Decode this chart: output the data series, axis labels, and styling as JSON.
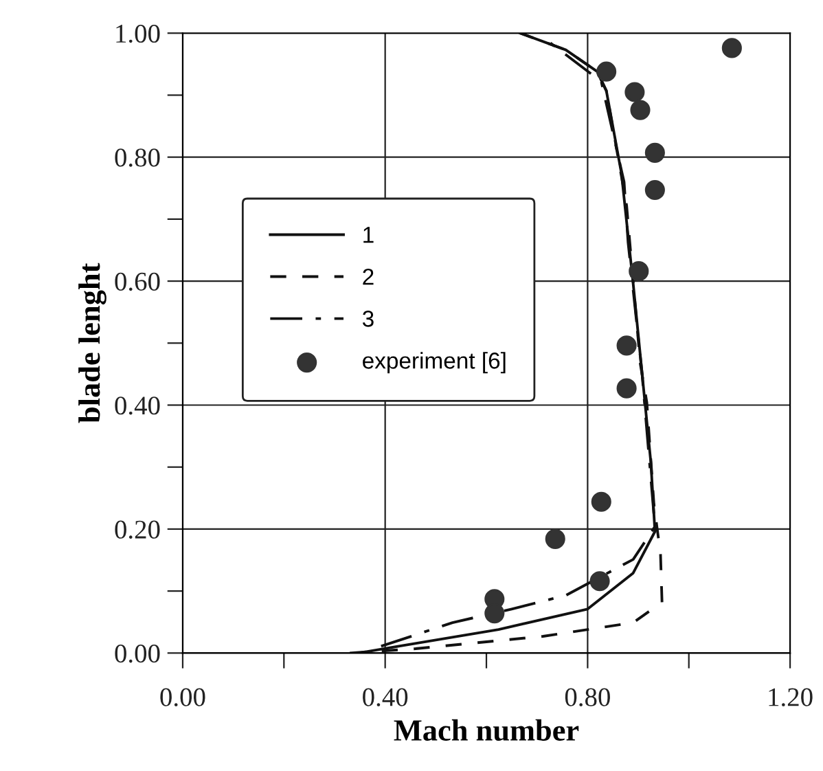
{
  "chart_data": {
    "type": "line",
    "xlabel": "Mach number",
    "ylabel": "blade lenght",
    "xlim": [
      0,
      1.2
    ],
    "ylim": [
      0,
      1.0
    ],
    "xticks": [
      {
        "value": 0,
        "label": "0.00"
      },
      {
        "value": 0.2,
        "label": null
      },
      {
        "value": 0.4,
        "label": "0.40"
      },
      {
        "value": 0.6,
        "label": null
      },
      {
        "value": 0.8,
        "label": "0.80"
      },
      {
        "value": 1.0,
        "label": null
      },
      {
        "value": 1.2,
        "label": "1.20"
      }
    ],
    "yticks": [
      {
        "value": 0,
        "label": "0.00"
      },
      {
        "value": 0.1,
        "label": null
      },
      {
        "value": 0.2,
        "label": "0.20"
      },
      {
        "value": 0.3,
        "label": null
      },
      {
        "value": 0.4,
        "label": "0.40"
      },
      {
        "value": 0.5,
        "label": null
      },
      {
        "value": 0.6,
        "label": "0.60"
      },
      {
        "value": 0.7,
        "label": null
      },
      {
        "value": 0.8,
        "label": "0.80"
      },
      {
        "value": 0.9,
        "label": null
      },
      {
        "value": 1.0,
        "label": "1.00"
      }
    ],
    "grid": true,
    "legend": "center left",
    "series": [
      {
        "name": "1",
        "color": "#111111",
        "line_style": "solid",
        "x": [
          0.347,
          0.427,
          0.624,
          0.8,
          0.89,
          0.933,
          0.925,
          0.907,
          0.89,
          0.867,
          0.837,
          0.819,
          0.757,
          0.667
        ],
        "values": [
          0,
          0.011,
          0.038,
          0.071,
          0.129,
          0.196,
          0.307,
          0.456,
          0.596,
          0.773,
          0.907,
          0.938,
          0.973,
          1.0
        ]
      },
      {
        "name": "2",
        "color": "#111111",
        "line_style": "dashed",
        "x": [
          0.33,
          0.46,
          0.712,
          0.89,
          0.947,
          0.944,
          0.931,
          0.917,
          0.904,
          0.877,
          0.837,
          0.819,
          0.757,
          0.667
        ],
        "values": [
          0,
          0.007,
          0.027,
          0.049,
          0.082,
          0.16,
          0.24,
          0.404,
          0.467,
          0.722,
          0.907,
          0.938,
          0.973,
          1.0
        ]
      },
      {
        "name": "3",
        "color": "#111111",
        "line_style": "dashdot",
        "x": [
          0.392,
          0.533,
          0.65,
          0.757,
          0.89,
          0.933,
          0.907,
          0.88,
          0.872,
          0.827,
          0.712
        ],
        "values": [
          0.011,
          0.049,
          0.071,
          0.093,
          0.151,
          0.204,
          0.456,
          0.662,
          0.76,
          0.922,
          0.993
        ]
      },
      {
        "name": "experiment [6]",
        "type": "scatter",
        "marker": "circle",
        "color": "#333333",
        "x": [
          1.085,
          0.837,
          0.893,
          0.904,
          0.933,
          0.933,
          0.901,
          0.877,
          0.877,
          0.827,
          0.736,
          0.824,
          0.616,
          0.616
        ],
        "values": [
          0.976,
          0.938,
          0.905,
          0.876,
          0.807,
          0.747,
          0.616,
          0.496,
          0.427,
          0.244,
          0.184,
          0.116,
          0.087,
          0.064
        ]
      }
    ]
  }
}
